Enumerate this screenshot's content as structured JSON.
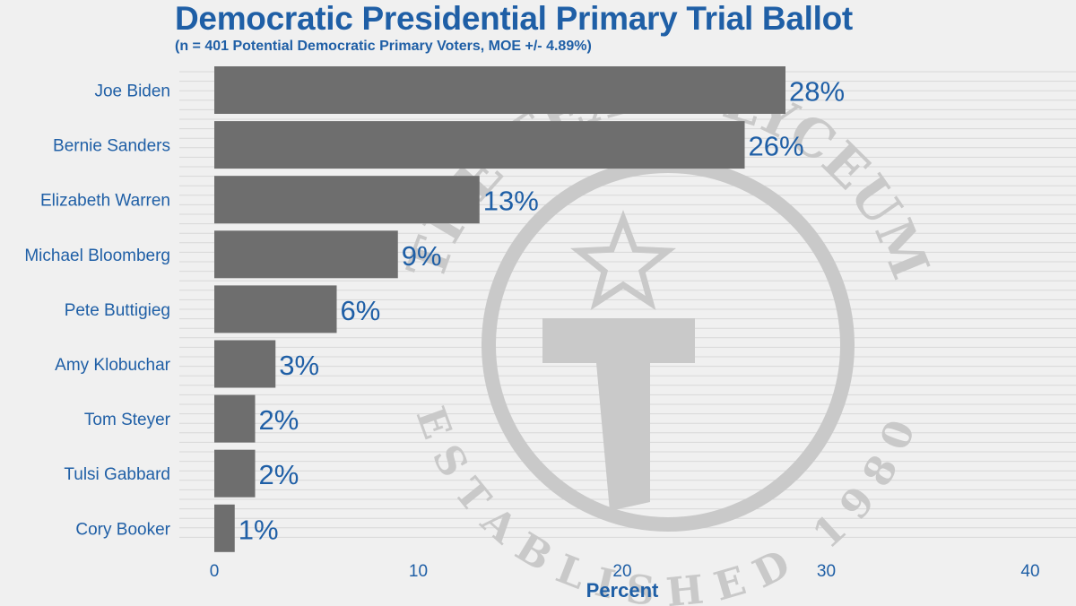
{
  "chart_data": {
    "type": "bar",
    "orientation": "horizontal",
    "title": "Democratic Presidential Primary Trial Ballot",
    "subtitle": "(n = 401 Potential Democratic Primary Voters, MOE +/- 4.89%)",
    "xlabel": "Percent",
    "ylabel": "",
    "xlim": [
      0,
      40
    ],
    "xticks": [
      0,
      10,
      20,
      30,
      40
    ],
    "categories": [
      "Joe Biden",
      "Bernie Sanders",
      "Elizabeth Warren",
      "Michael Bloomberg",
      "Pete Buttigieg",
      "Amy Klobuchar",
      "Tom Steyer",
      "Tulsi Gabbard",
      "Cory Booker"
    ],
    "values": [
      28,
      26,
      13,
      9,
      6,
      3,
      2,
      2,
      1
    ],
    "data_labels": [
      "28%",
      "26%",
      "13%",
      "9%",
      "6%",
      "3%",
      "2%",
      "2%",
      "1%"
    ],
    "grid": true,
    "bar_color": "#6e6e6e",
    "text_color": "#1f5fa6"
  },
  "watermark": {
    "top_text": "THE TEXAS LYCEUM",
    "bottom_text": "ESTABLISHED 1980",
    "color": "#c9c9c9"
  }
}
